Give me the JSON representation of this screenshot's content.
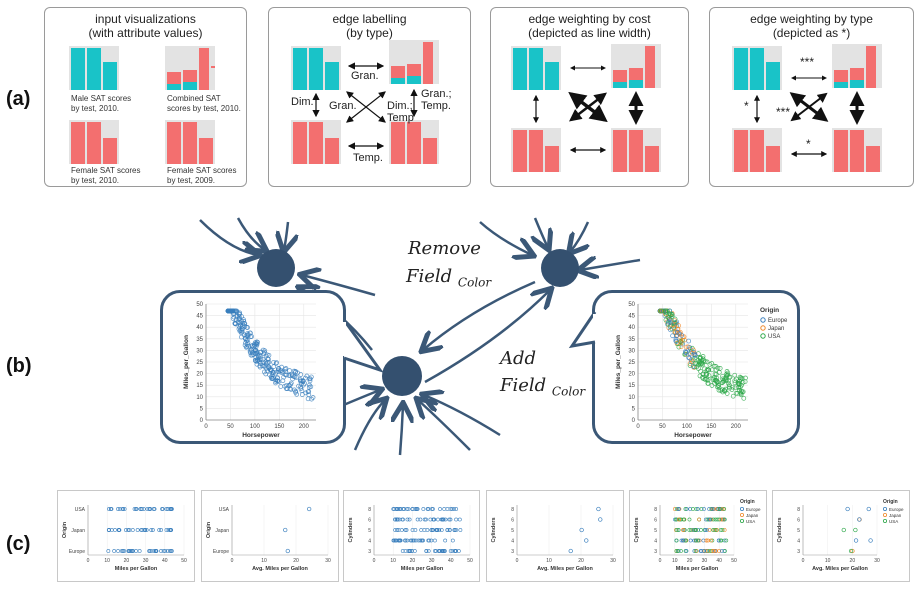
{
  "row_labels": [
    "(a)",
    "(b)",
    "(c)"
  ],
  "panels_a": [
    {
      "title": "input visualizations\n(with attribute values)"
    },
    {
      "title": "edge labelling\n(by type)"
    },
    {
      "title": "edge weighting by cost\n(depicted as line width)"
    },
    {
      "title": "edge weighting by type\n(depicted as *)"
    }
  ],
  "captions_a": [
    "Male SAT scores\nby test, 2010.",
    "Combined SAT\nscores by test, 2010.",
    "Female SAT scores\nby test, 2010.",
    "Female SAT scores\nby test, 2009."
  ],
  "edge_labels": {
    "gran": "Gran.",
    "dim": "Dim.",
    "gran_diag": "Gran.",
    "dim_temp": "Dim.;\nTemp",
    "gran_temp": "Gran.;\nTemp.",
    "temp": "Temp."
  },
  "stars": {
    "triple": "***",
    "single": "*"
  },
  "graph_b": {
    "remove_label": "Remove",
    "add_label": "Add",
    "field_word": "Field",
    "color_sub": "Color"
  },
  "scatter_left": {
    "xlabel": "Horsepower",
    "ylabel": "Miles_per_Gallon",
    "xticks": [
      "0",
      "50",
      "100",
      "150",
      "200"
    ],
    "yticks": [
      "0",
      "5",
      "10",
      "15",
      "20",
      "25",
      "30",
      "35",
      "40",
      "45",
      "50"
    ]
  },
  "scatter_right": {
    "xlabel": "Horsepower",
    "ylabel": "Miles_per_Gallon",
    "xticks": [
      "0",
      "50",
      "100",
      "150",
      "200"
    ],
    "yticks": [
      "0",
      "5",
      "10",
      "15",
      "20",
      "25",
      "30",
      "35",
      "40",
      "45",
      "50"
    ],
    "legend_title": "Origin",
    "legend": [
      "Europe",
      "Japan",
      "USA"
    ]
  },
  "colors": {
    "teal": "#19c3c8",
    "salmon": "#f36f6f",
    "node": "#34506f",
    "blue": "#3a7fbd",
    "orange": "#f08a2c",
    "green": "#2ea84a"
  },
  "panels_c": [
    {
      "xlabel": "Miles per Gallon",
      "ylabel": "Origin",
      "yticks": [
        "Europe",
        "Japan",
        "USA"
      ],
      "xticks": [
        "0",
        "10",
        "20",
        "30",
        "40",
        "50"
      ]
    },
    {
      "xlabel": "Avg. Miles per Gallon",
      "ylabel": "Origin",
      "yticks": [
        "Europe",
        "Japan",
        "USA"
      ],
      "xticks": [
        "0",
        "10",
        "20",
        "30"
      ]
    },
    {
      "xlabel": "Miles per Gallon",
      "ylabel": "Cylinders",
      "yticks": [
        "3",
        "4",
        "5",
        "6",
        "8"
      ],
      "xticks": [
        "0",
        "10",
        "20",
        "30",
        "40",
        "50"
      ]
    },
    {
      "xlabel": "Avg. Miles per Gallon",
      "ylabel": "Cylinders",
      "yticks": [
        "3",
        "4",
        "5",
        "6",
        "8"
      ],
      "xticks": [
        "0",
        "10",
        "20",
        "30"
      ]
    },
    {
      "xlabel": "Miles per Gallon",
      "ylabel": "Cylinders",
      "yticks": [
        "3",
        "4",
        "5",
        "6",
        "8"
      ],
      "xticks": [
        "0",
        "10",
        "20",
        "30",
        "40",
        "50"
      ],
      "legend_title": "Origin",
      "legend": [
        "Europe",
        "Japan",
        "USA"
      ]
    },
    {
      "xlabel": "Avg. Miles per Gallon",
      "ylabel": "Cylinders",
      "yticks": [
        "3",
        "4",
        "5",
        "6",
        "8"
      ],
      "xticks": [
        "0",
        "10",
        "20",
        "30"
      ],
      "legend_title": "Origin",
      "legend": [
        "Europe",
        "Japan",
        "USA"
      ]
    }
  ]
}
